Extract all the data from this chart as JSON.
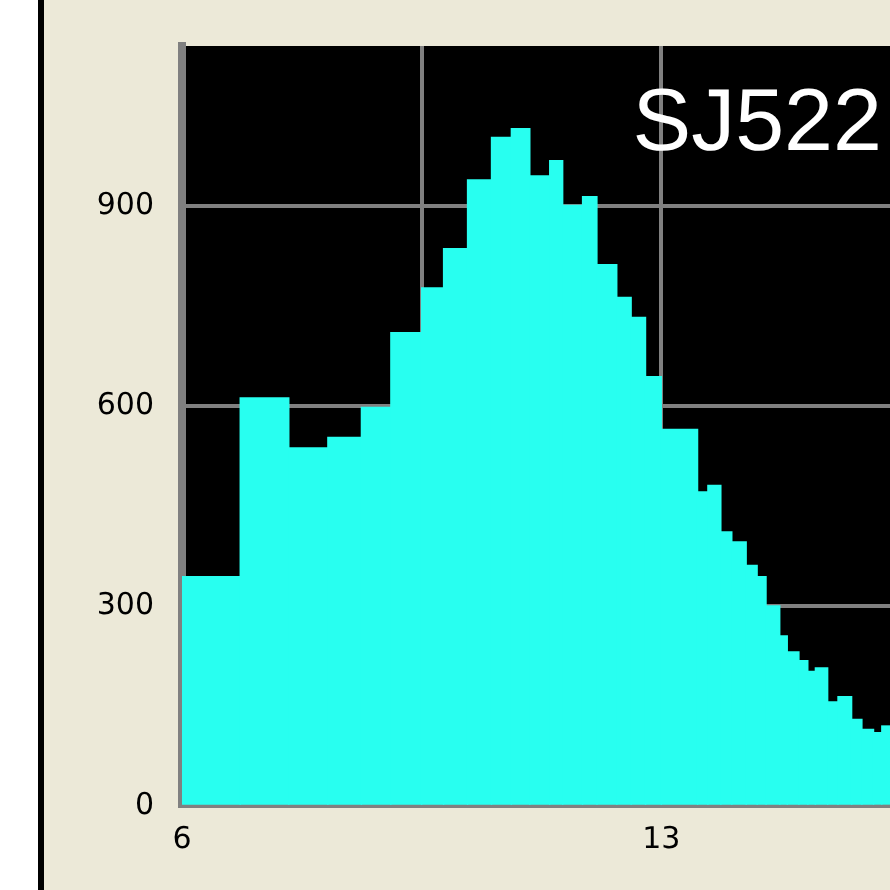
{
  "chart_data": {
    "type": "histogram",
    "title": "SJ522",
    "color": "#28fff0",
    "bins": [
      6.0,
      6.85,
      7.56,
      8.13,
      8.62,
      9.05,
      9.5,
      9.82,
      10.17,
      10.52,
      10.81,
      11.08,
      11.37,
      11.56,
      11.85,
      12.06,
      12.35,
      12.56,
      12.77,
      13.0,
      13.53,
      13.68,
      13.87,
      14.03,
      14.24,
      14.4,
      14.53,
      14.73,
      14.84,
      15.01,
      15.14,
      15.25,
      15.43,
      15.58,
      15.78,
      15.93,
      16.1,
      16.22,
      16.34
    ],
    "values": [
      344,
      612,
      537,
      553,
      598,
      710,
      777,
      836,
      939,
      1003,
      1016,
      945,
      968,
      901,
      914,
      812,
      763,
      733,
      644,
      565,
      471,
      481,
      411,
      396,
      361,
      344,
      300,
      255,
      231,
      218,
      202,
      207,
      156,
      164,
      130,
      115,
      110,
      120
    ],
    "xlim": [
      6,
      16.34
    ],
    "ylim": [
      0,
      1140
    ],
    "xticks": [
      6,
      {
        "value": 9.5,
        "label": null
      },
      13
    ],
    "yticks": [
      0,
      300,
      600,
      900
    ],
    "grid": true
  }
}
